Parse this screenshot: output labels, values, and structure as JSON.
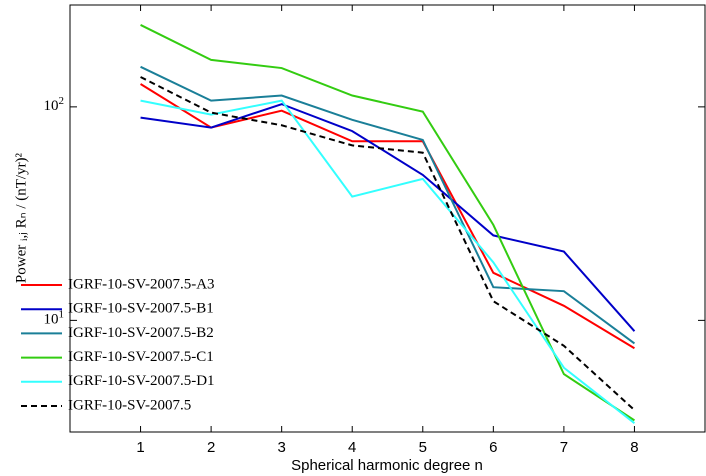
{
  "chart_data": {
    "type": "line",
    "xlabel": "Spherical harmonic degree n",
    "ylabel": "Power ᵢ,ⱼ Rₙ / (nT/yr)²",
    "x": [
      1,
      2,
      3,
      4,
      5,
      6,
      7,
      8
    ],
    "xlim": [
      0,
      9
    ],
    "xticks": [
      1,
      2,
      3,
      4,
      5,
      6,
      7,
      8
    ],
    "ylim": [
      3,
      300
    ],
    "yscale": "log",
    "yticks": [
      {
        "value": 10,
        "label": "10^1"
      },
      {
        "value": 100,
        "label": "10^2"
      }
    ],
    "legend": "lower left",
    "series": [
      {
        "name": "IGRF-10-SV-2007.5-A3",
        "color": "#ff0000",
        "linestyle": "solid",
        "values": [
          128,
          80,
          96,
          69,
          69,
          16.7,
          11.7,
          7.4
        ]
      },
      {
        "name": "IGRF-10-SV-2007.5-B1",
        "color": "#0000c8",
        "linestyle": "solid",
        "values": [
          89,
          80,
          103,
          77,
          48,
          25,
          21,
          8.9
        ]
      },
      {
        "name": "IGRF-10-SV-2007.5-B2",
        "color": "#1a7f98",
        "linestyle": "solid",
        "values": [
          154,
          107,
          113,
          87,
          70,
          14.3,
          13.7,
          7.8
        ]
      },
      {
        "name": "IGRF-10-SV-2007.5-C1",
        "color": "#33cc11",
        "linestyle": "solid",
        "values": [
          242,
          166,
          152,
          113,
          95,
          28,
          5.6,
          3.4
        ]
      },
      {
        "name": "IGRF-10-SV-2007.5-D1",
        "color": "#33ffff",
        "linestyle": "solid",
        "values": [
          107,
          92,
          107,
          38,
          46,
          18.7,
          6.0,
          3.3
        ]
      },
      {
        "name": "IGRF-10-SV-2007.5",
        "color": "#000000",
        "linestyle": "dashed",
        "values": [
          138,
          94,
          82,
          66,
          61,
          12.3,
          7.6,
          3.8
        ]
      }
    ]
  }
}
